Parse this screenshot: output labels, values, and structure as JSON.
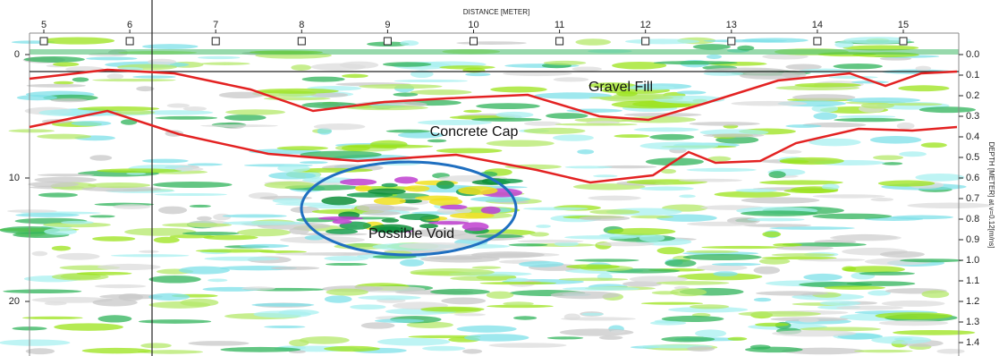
{
  "axis_title": "DISTANCE [METER]",
  "top_ticks": [
    "5",
    "6",
    "7",
    "8",
    "9",
    "10",
    "11",
    "12",
    "13",
    "14",
    "15"
  ],
  "left_ticks": [
    "0",
    "10",
    "20"
  ],
  "right_ticks": [
    "0.0",
    "0.1",
    "0.2",
    "0.3",
    "0.4",
    "0.5",
    "0.6",
    "0.7",
    "0.8",
    "0.9",
    "1.0",
    "1.1",
    "1.2",
    "1.3",
    "1.4"
  ],
  "right_axis_label": "DEPTH [METER] at v=0.12[m/ns]",
  "annotations": [
    "Gravel Fill",
    "Concrete Cap",
    "Possible Void"
  ]
}
